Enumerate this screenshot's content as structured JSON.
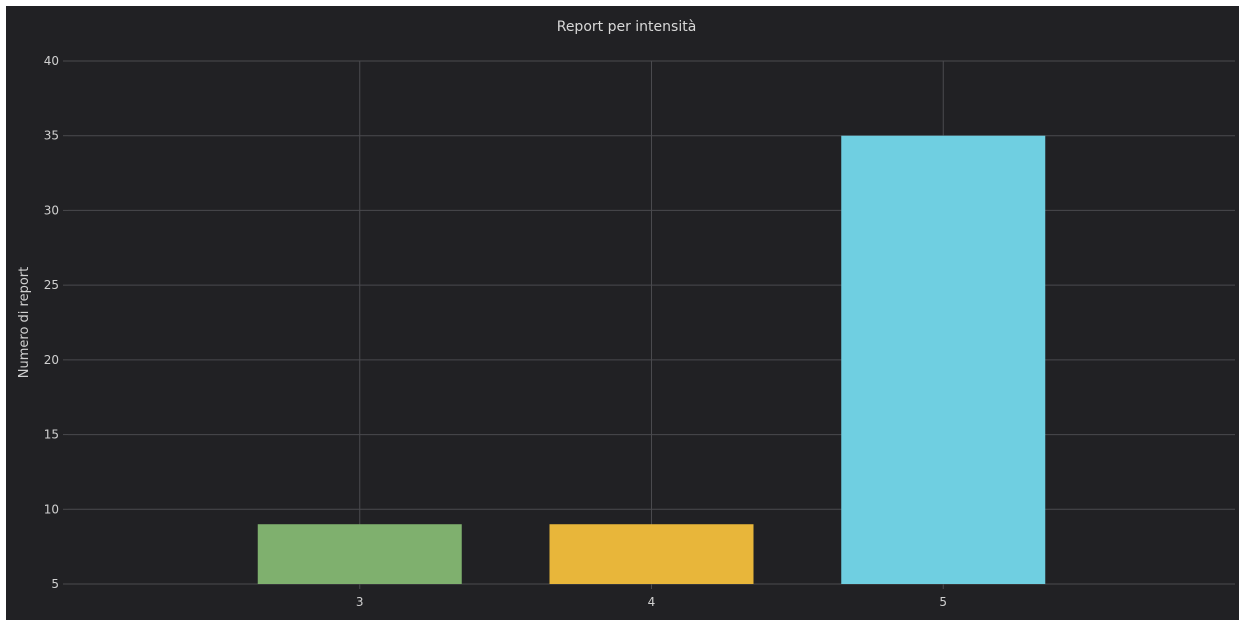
{
  "chart_data": {
    "type": "bar",
    "title": "Report per intensità",
    "xlabel": "",
    "ylabel": "Numero di report",
    "categories": [
      "3",
      "4",
      "5"
    ],
    "values": [
      9,
      9,
      35
    ],
    "colors": [
      "#7fb06e",
      "#e8b63a",
      "#6fcfe1"
    ],
    "yticks": [
      "5",
      "10",
      "15",
      "20",
      "25",
      "30",
      "35",
      "40"
    ],
    "ylim": [
      5,
      40
    ],
    "grid": true,
    "background": "#212124",
    "grid_color": "#4a4a4e"
  }
}
